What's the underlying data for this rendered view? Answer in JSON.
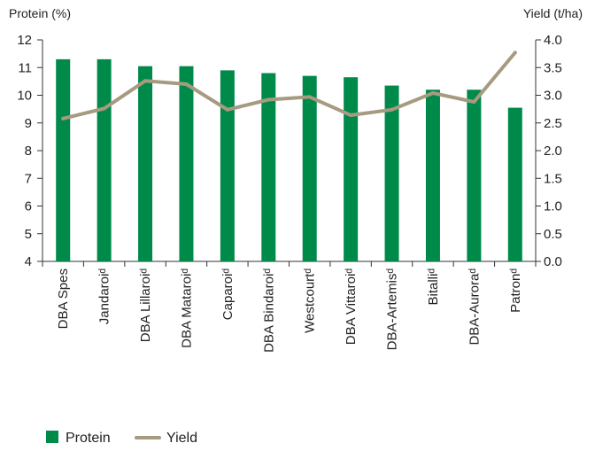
{
  "chart_data": {
    "type": "bar",
    "categories": [
      "DBA Spes",
      "Jandaroiᵈ",
      "DBA Lillaroiᵈ",
      "DBA Mataroiᵈ",
      "Caparoiᵈ",
      "DBA Bindaroiᵈ",
      "Westcourtᵈ",
      "DBA Vittaroiᵈ",
      "DBA-Artemisᵈ",
      "Bitalliᵈ",
      "DBA-Auroraᵈ",
      "Patronᵈ"
    ],
    "series": [
      {
        "name": "Protein",
        "kind": "bar",
        "axis": "left",
        "color": "#008a4a",
        "values": [
          11.3,
          11.3,
          11.05,
          11.05,
          10.9,
          10.8,
          10.7,
          10.65,
          10.35,
          10.2,
          10.2,
          9.55
        ]
      },
      {
        "name": "Yield",
        "kind": "line",
        "axis": "right",
        "color": "#a69a80",
        "values": [
          2.58,
          2.76,
          3.26,
          3.2,
          2.74,
          2.92,
          2.97,
          2.64,
          2.74,
          3.04,
          2.88,
          3.77
        ]
      }
    ],
    "ylabel_left": "Protein (%)",
    "ylabel_right": "Yield (t/ha)",
    "ylim_left": [
      4,
      12
    ],
    "ylim_right": [
      0.0,
      4.0
    ],
    "yticks_left": [
      "12",
      "11",
      "10",
      "9",
      "8",
      "7",
      "6",
      "5",
      "4"
    ],
    "yticks_right": [
      "4.0",
      "3.5",
      "3.0",
      "2.5",
      "2.0",
      "1.5",
      "1.0",
      "0.5",
      "0.0"
    ],
    "grid": false,
    "legend_position": "bottom-left"
  }
}
